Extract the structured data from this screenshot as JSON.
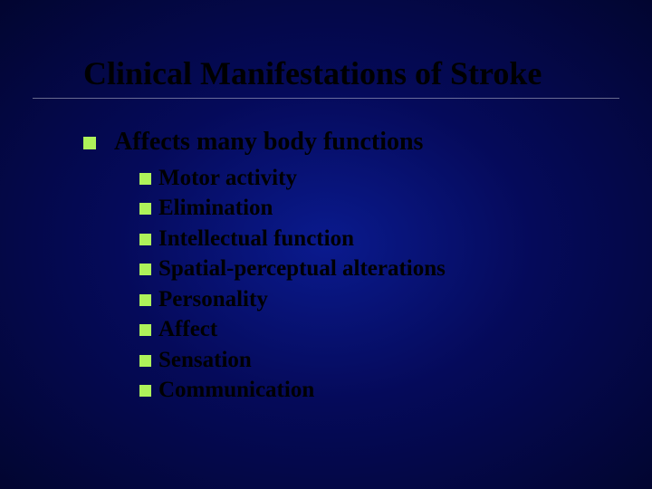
{
  "slide": {
    "title": "Clinical Manifestations of Stroke",
    "level1": "Affects many body functions",
    "level2": [
      "Motor activity",
      "Elimination",
      "Intellectual function",
      "Spatial-perceptual alterations",
      "Personality",
      "Affect",
      "Sensation",
      "Communication"
    ]
  },
  "style": {
    "bullet_color": "#aef25a",
    "text_color": "#000000",
    "title_fontsize": 36,
    "level1_fontsize": 28,
    "level2_fontsize": 25,
    "bg_center": "#0a1a8e",
    "bg_edge": "#020530"
  }
}
